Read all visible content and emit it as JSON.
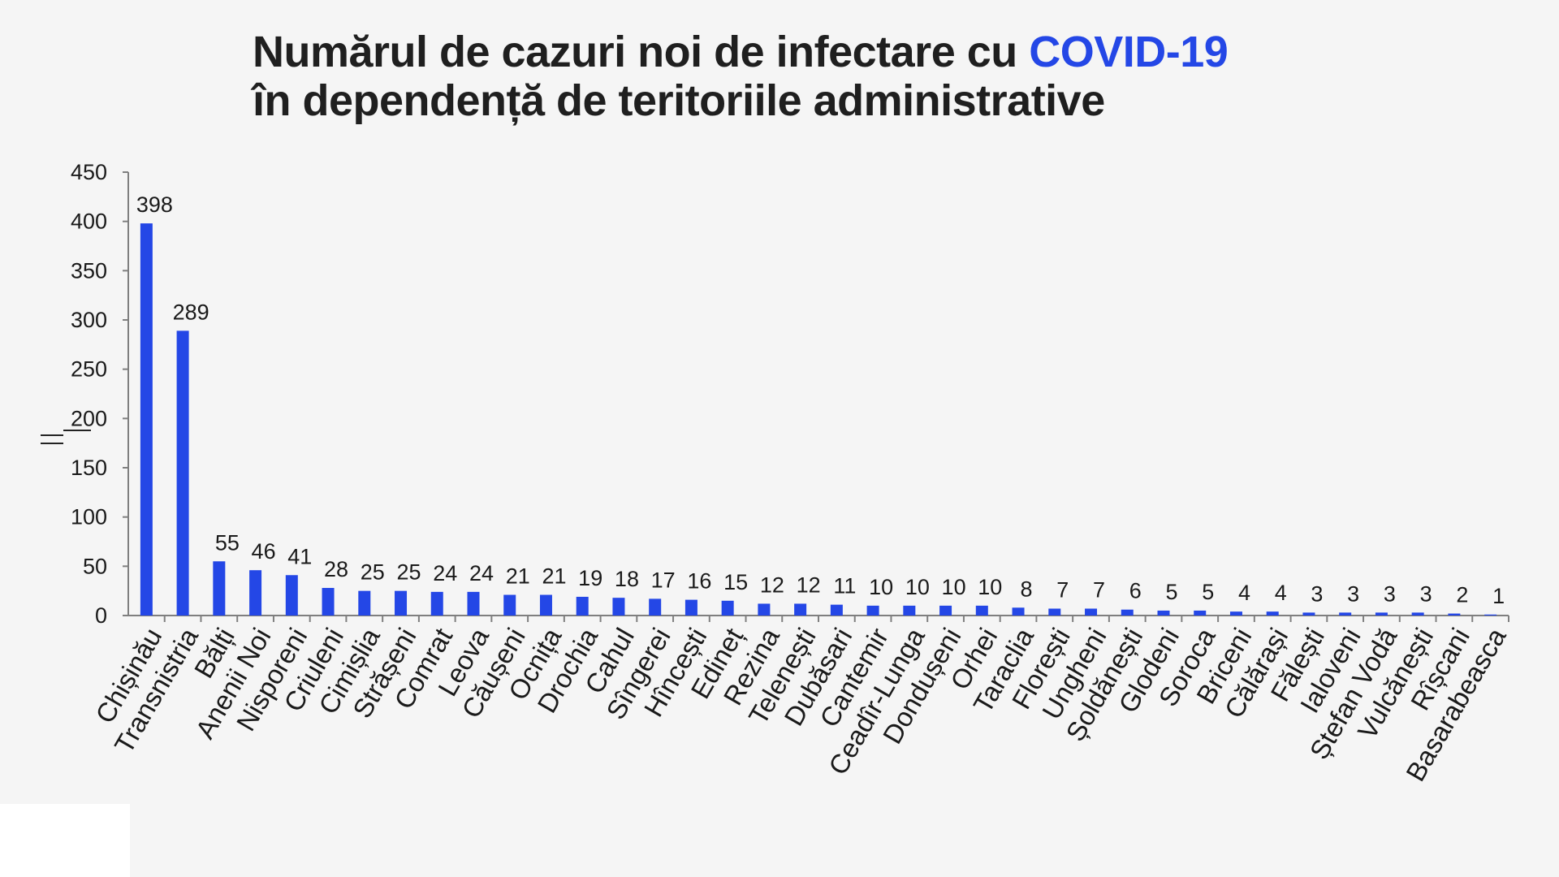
{
  "title": {
    "line1_prefix": "Numărul de cazuri noi de infectare cu ",
    "line1_accent": "COVID-19",
    "line2": "în dependență de teritoriile administrative"
  },
  "colors": {
    "bar": "#2447e6",
    "accent": "#2447e6",
    "axis": "#7f7f7f"
  },
  "chart_data": {
    "type": "bar",
    "title": "Numărul de cazuri noi de infectare cu COVID-19 în dependență de teritoriile administrative",
    "xlabel": "",
    "ylabel": "",
    "ylim": [
      0,
      450
    ],
    "yticks": [
      0,
      50,
      100,
      150,
      200,
      250,
      300,
      350,
      400,
      450
    ],
    "grid": false,
    "legend": "none",
    "categories": [
      "Chișinău",
      "Transnistria",
      "Bălți",
      "Anenii Noi",
      "Nisporeni",
      "Criuleni",
      "Cimișlia",
      "Strășeni",
      "Comrat",
      "Leova",
      "Căușeni",
      "Ocnița",
      "Drochia",
      "Cahul",
      "Sîngerei",
      "Hîncești",
      "Edineț",
      "Rezina",
      "Telenești",
      "Dubăsari",
      "Cantemir",
      "Ceadîr-Lunga",
      "Dondușeni",
      "Orhei",
      "Taraclia",
      "Florești",
      "Ungheni",
      "Șoldănești",
      "Glodeni",
      "Soroca",
      "Briceni",
      "Călărași",
      "Fălești",
      "Ialoveni",
      "Ștefan Vodă",
      "Vulcănești",
      "Rîșcani",
      "Basarabeasca"
    ],
    "values": [
      398,
      289,
      55,
      46,
      41,
      28,
      25,
      25,
      24,
      24,
      21,
      21,
      19,
      18,
      17,
      16,
      15,
      12,
      12,
      11,
      10,
      10,
      10,
      10,
      8,
      7,
      7,
      6,
      5,
      5,
      4,
      4,
      3,
      3,
      3,
      3,
      2,
      1
    ]
  }
}
